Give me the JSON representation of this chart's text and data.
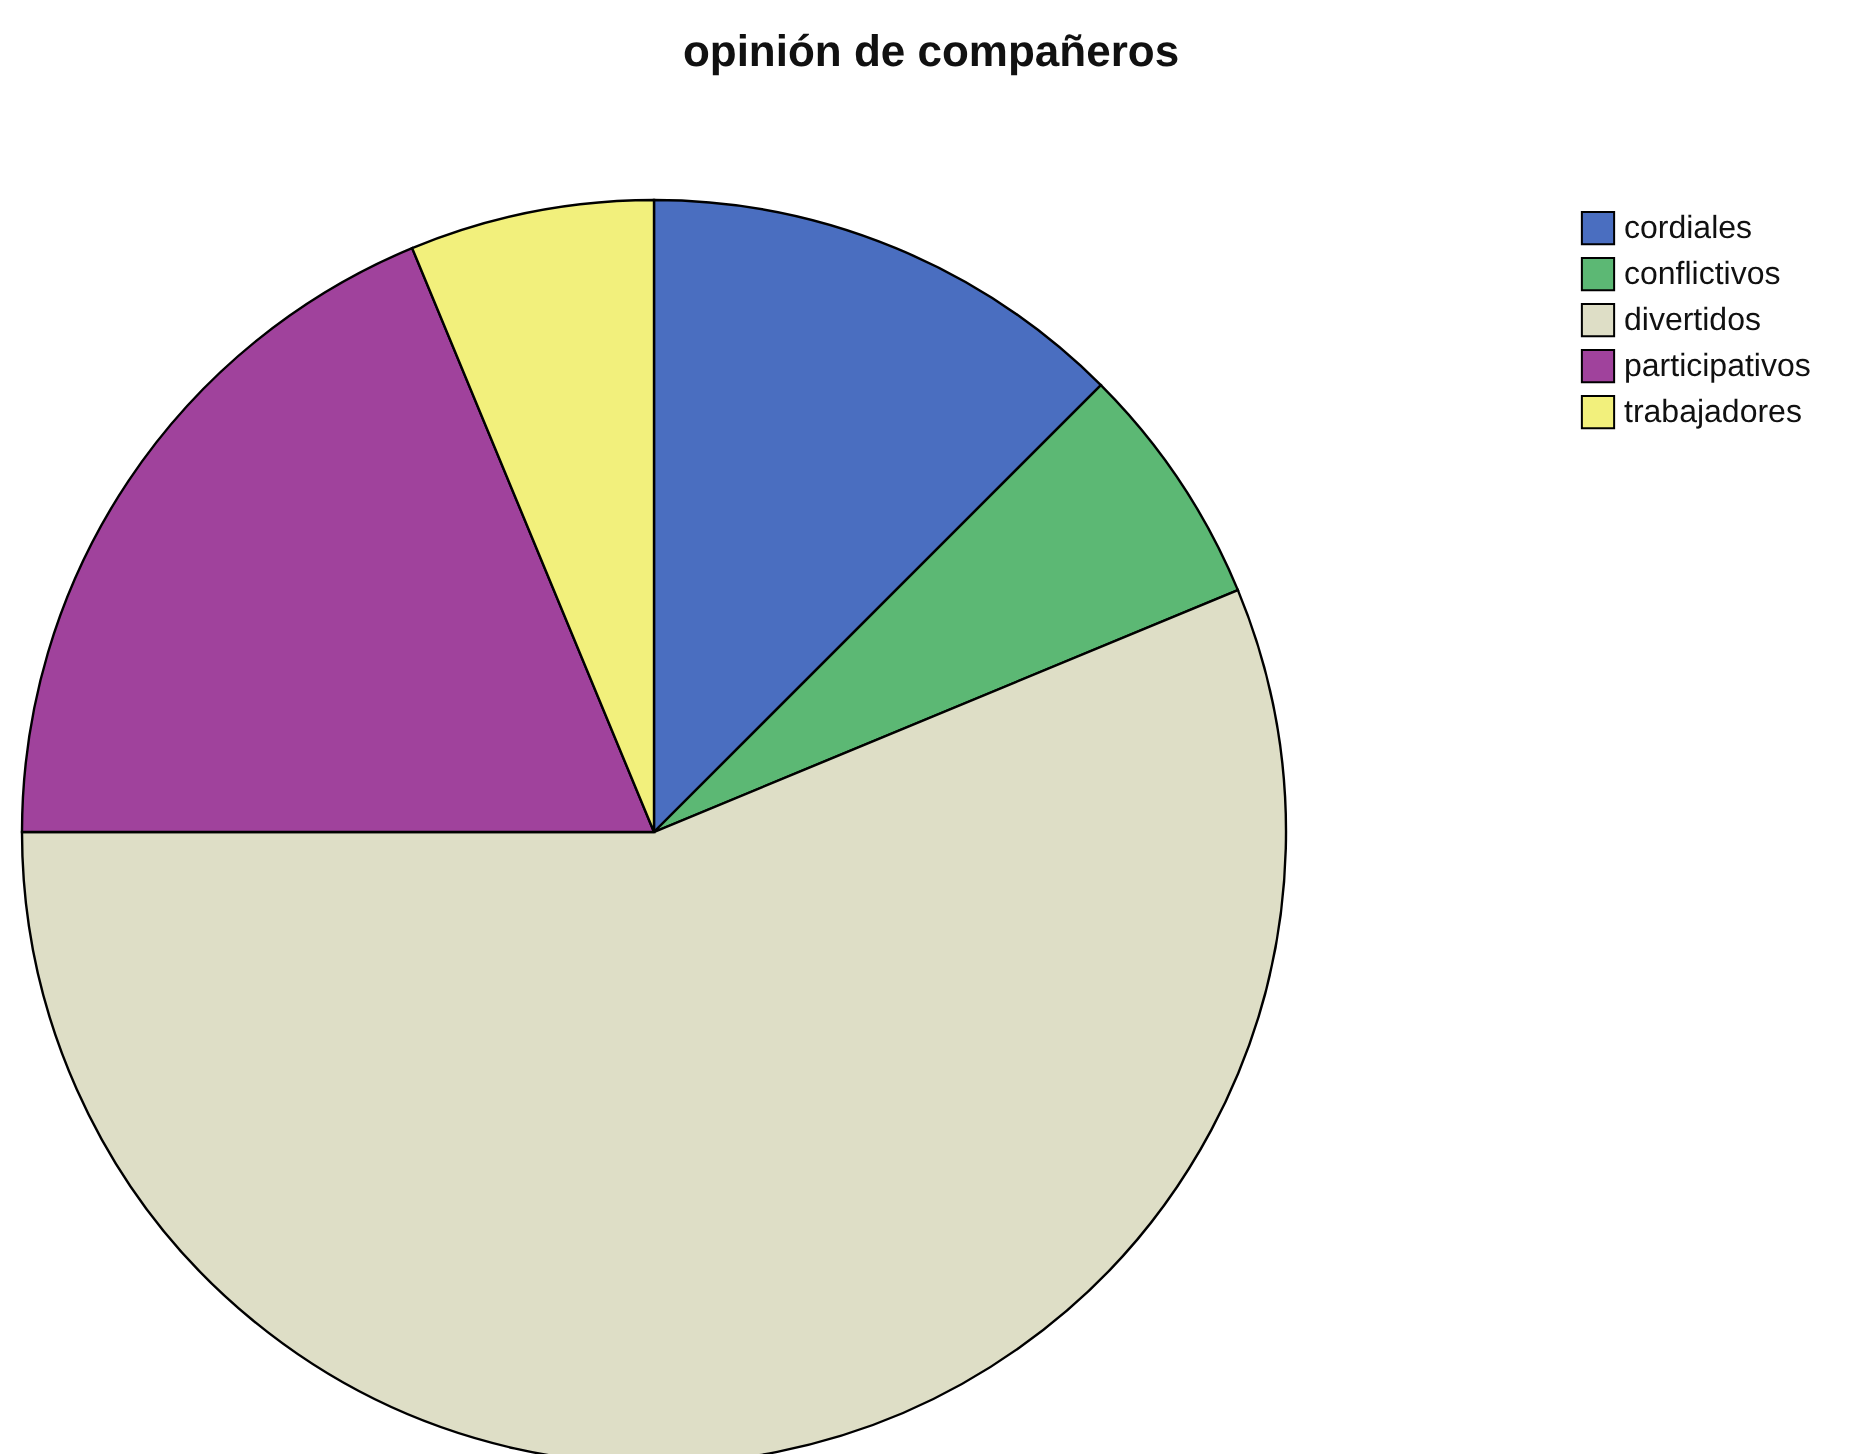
{
  "chart_data": {
    "type": "pie",
    "title": "opinión de compañeros",
    "categories": [
      "cordiales",
      "conflictivos",
      "divertidos",
      "participativos",
      "trabajadores"
    ],
    "values": [
      12.5,
      6.25,
      56.25,
      18.75,
      6.25
    ],
    "colors": [
      "#4a6ec0",
      "#5cb874",
      "#dedec6",
      "#a0429c",
      "#f2f07c"
    ],
    "legend": "top right"
  }
}
